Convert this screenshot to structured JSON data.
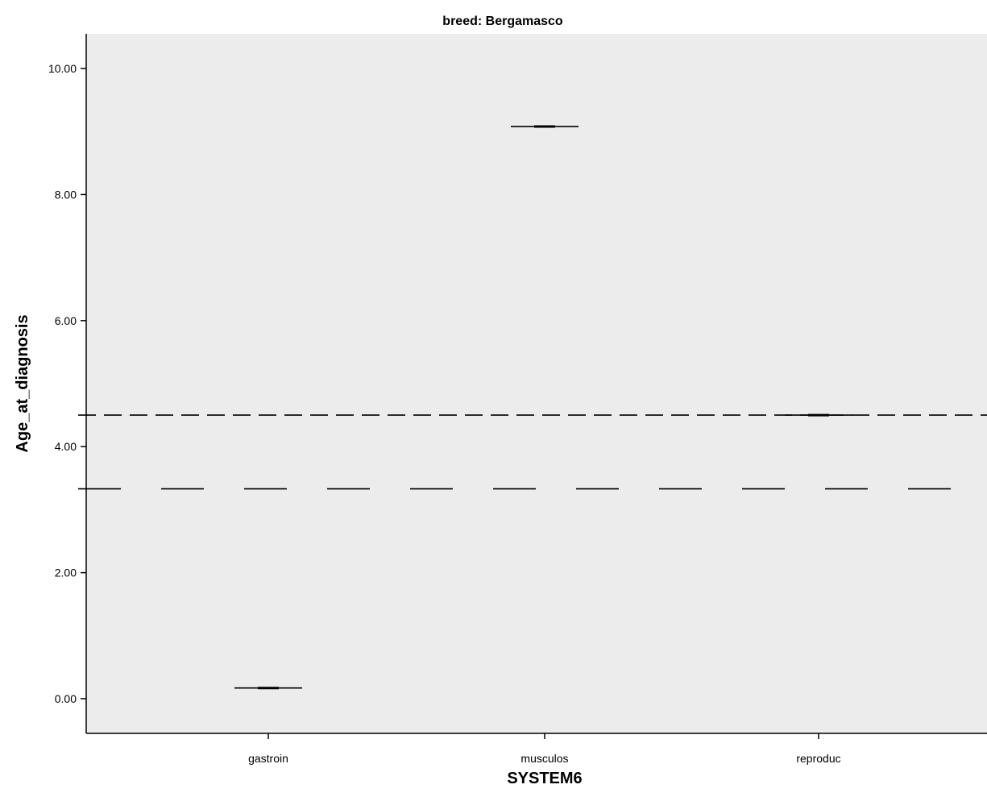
{
  "chart_data": {
    "type": "boxplot",
    "title": "breed: Bergamasco",
    "xlabel": "SYSTEM6",
    "ylabel": "Age_at_diagnosis",
    "categories": [
      "gastroin",
      "musculos",
      "reproduc"
    ],
    "series": [
      {
        "values": [
          0.17,
          9.08,
          4.5
        ]
      }
    ],
    "reference_lines": [
      {
        "y": 4.5,
        "style": "dashed"
      },
      {
        "y": 3.33,
        "style": "long-dashed"
      }
    ],
    "ylim": [
      -0.55,
      10.55
    ],
    "yticks": [
      0.0,
      2.0,
      4.0,
      6.0,
      8.0,
      10.0
    ],
    "ytick_labels": [
      "0.00",
      "2.00",
      "4.00",
      "6.00",
      "8.00",
      "10.00"
    ],
    "grid": false,
    "legend": "none",
    "colors": {
      "plot_background": "#ececec",
      "line": "#000000"
    }
  }
}
